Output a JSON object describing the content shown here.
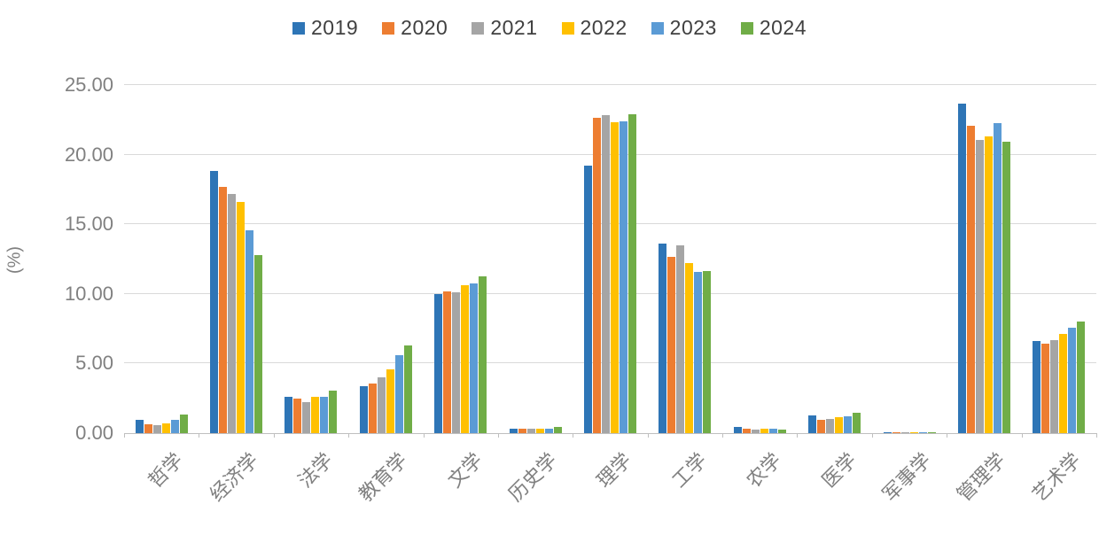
{
  "chart_data": {
    "type": "bar",
    "ylabel": "(%)",
    "ylim": [
      0,
      25
    ],
    "ytick_step": 5,
    "ytick_labels": [
      "0.00",
      "5.00",
      "10.00",
      "15.00",
      "20.00",
      "25.00"
    ],
    "grid": true,
    "legend_position": "top",
    "categories": [
      "哲学",
      "经济学",
      "法学",
      "教育学",
      "文学",
      "历史学",
      "理学",
      "工学",
      "农学",
      "医学",
      "军事学",
      "管理学",
      "艺术学"
    ],
    "series": [
      {
        "name": "2019",
        "color": "#2E75B6",
        "values": [
          0.95,
          18.85,
          2.6,
          3.35,
          10.0,
          0.35,
          19.2,
          13.6,
          0.45,
          1.28,
          0.05,
          23.65,
          6.6
        ]
      },
      {
        "name": "2020",
        "color": "#ED7D31",
        "values": [
          0.65,
          17.7,
          2.5,
          3.55,
          10.2,
          0.33,
          22.65,
          12.65,
          0.3,
          0.97,
          0.05,
          22.05,
          6.4
        ]
      },
      {
        "name": "2021",
        "color": "#A5A5A5",
        "values": [
          0.6,
          17.15,
          2.25,
          4.0,
          10.1,
          0.3,
          22.85,
          13.5,
          0.27,
          1.03,
          0.05,
          21.05,
          6.7
        ]
      },
      {
        "name": "2022",
        "color": "#FFC000",
        "values": [
          0.73,
          16.6,
          2.6,
          4.55,
          10.65,
          0.32,
          22.3,
          12.2,
          0.3,
          1.13,
          0.05,
          21.3,
          7.1
        ]
      },
      {
        "name": "2023",
        "color": "#5B9BD5",
        "values": [
          0.95,
          14.55,
          2.6,
          5.6,
          10.75,
          0.3,
          22.4,
          11.6,
          0.33,
          1.24,
          0.05,
          22.25,
          7.6
        ]
      },
      {
        "name": "2024",
        "color": "#70AD47",
        "values": [
          1.35,
          12.8,
          3.05,
          6.3,
          11.25,
          0.45,
          22.9,
          11.65,
          0.25,
          1.45,
          0.05,
          20.9,
          8.0
        ]
      }
    ]
  }
}
